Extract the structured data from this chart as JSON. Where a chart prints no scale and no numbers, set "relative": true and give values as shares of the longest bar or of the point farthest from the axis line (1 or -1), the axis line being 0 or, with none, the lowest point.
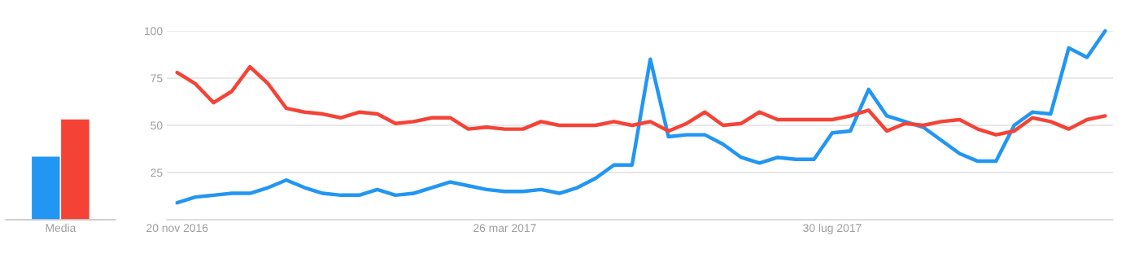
{
  "chart_data": [
    {
      "type": "bar",
      "relative": true,
      "categories": [
        "Media"
      ],
      "series": [
        {
          "color": "#2196f3",
          "values": [
            0.63
          ]
        },
        {
          "color": "#f44336",
          "values": [
            1
          ]
        }
      ]
    },
    {
      "type": "line",
      "x": [
        "2016-11-20",
        "2016-11-27",
        "2016-12-04",
        "2016-12-11",
        "2016-12-18",
        "2016-12-25",
        "2017-01-01",
        "2017-01-08",
        "2017-01-15",
        "2017-01-22",
        "2017-01-29",
        "2017-02-05",
        "2017-02-12",
        "2017-02-19",
        "2017-02-26",
        "2017-03-05",
        "2017-03-12",
        "2017-03-19",
        "2017-03-26",
        "2017-04-02",
        "2017-04-09",
        "2017-04-16",
        "2017-04-23",
        "2017-04-30",
        "2017-05-07",
        "2017-05-14",
        "2017-05-21",
        "2017-05-28",
        "2017-06-04",
        "2017-06-11",
        "2017-06-18",
        "2017-06-25",
        "2017-07-02",
        "2017-07-09",
        "2017-07-16",
        "2017-07-23",
        "2017-07-30",
        "2017-08-06",
        "2017-08-13",
        "2017-08-20",
        "2017-08-27",
        "2017-09-03",
        "2017-09-10",
        "2017-09-17",
        "2017-09-24",
        "2017-10-01",
        "2017-10-08",
        "2017-10-15",
        "2017-10-22",
        "2017-10-29",
        "2017-11-05",
        "2017-11-12"
      ],
      "series": [
        {
          "color": "#2196f3",
          "values": [
            9,
            12,
            13,
            14,
            14,
            17,
            21,
            17,
            14,
            13,
            13,
            16,
            13,
            14,
            17,
            20,
            18,
            16,
            15,
            15,
            16,
            14,
            17,
            22,
            29,
            29,
            85,
            44,
            45,
            45,
            40,
            33,
            30,
            33,
            32,
            32,
            46,
            47,
            69,
            55,
            52,
            49,
            42,
            35,
            31,
            31,
            50,
            57,
            56,
            91,
            86,
            100
          ]
        },
        {
          "color": "#f44336",
          "values": [
            78,
            72,
            62,
            68,
            81,
            72,
            59,
            57,
            56,
            54,
            57,
            56,
            51,
            52,
            54,
            54,
            48,
            49,
            48,
            48,
            52,
            50,
            50,
            50,
            52,
            50,
            52,
            47,
            51,
            57,
            50,
            51,
            57,
            53,
            53,
            53,
            53,
            55,
            58,
            47,
            51,
            50,
            52,
            53,
            48,
            45,
            47,
            54,
            52,
            48,
            53,
            55
          ]
        }
      ],
      "xlim": [
        "2016-11-16",
        "2017-11-15"
      ],
      "xticks": [
        {
          "value": "2016-11-20",
          "label": "20 nov 2016"
        },
        {
          "value": "2017-03-26",
          "label": "26 mar 2017"
        },
        {
          "value": "2017-07-30",
          "label": "30 lug 2017"
        }
      ],
      "ylim": [
        0,
        100
      ],
      "yticks": [
        25,
        50,
        75,
        100
      ],
      "grid": "y",
      "line_style": "solid"
    }
  ]
}
